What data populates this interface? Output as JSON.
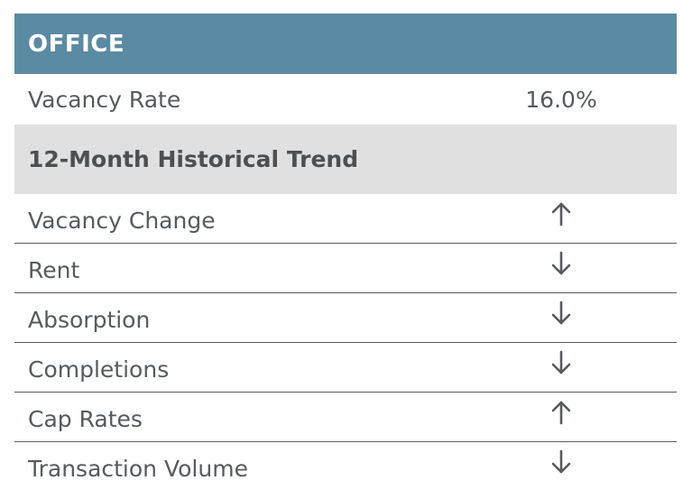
{
  "header": {
    "title": "OFFICE"
  },
  "vacancy": {
    "label": "Vacancy Rate",
    "value": "16.0%"
  },
  "trend_section": {
    "title": "12-Month Historical Trend"
  },
  "trends": [
    {
      "label": "Vacancy Change",
      "direction": "up",
      "icon": "arrow-up-icon"
    },
    {
      "label": "Rent",
      "direction": "down",
      "icon": "arrow-down-icon"
    },
    {
      "label": "Absorption",
      "direction": "down",
      "icon": "arrow-down-icon"
    },
    {
      "label": "Completions",
      "direction": "down",
      "icon": "arrow-down-icon"
    },
    {
      "label": "Cap Rates",
      "direction": "up",
      "icon": "arrow-up-icon"
    },
    {
      "label": "Transaction Volume",
      "direction": "down",
      "icon": "arrow-down-icon"
    }
  ],
  "colors": {
    "header_bg": "#5b8aa3",
    "subheader_bg": "#e0e0e0",
    "text": "#555a5f"
  }
}
